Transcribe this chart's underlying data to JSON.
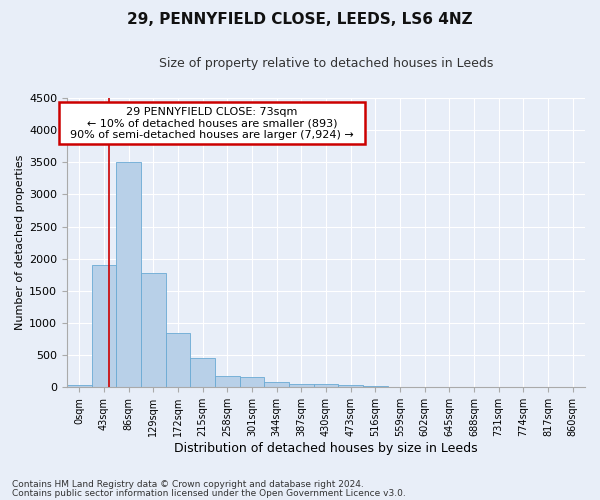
{
  "title": "29, PENNYFIELD CLOSE, LEEDS, LS6 4NZ",
  "subtitle": "Size of property relative to detached houses in Leeds",
  "xlabel": "Distribution of detached houses by size in Leeds",
  "ylabel": "Number of detached properties",
  "bin_labels": [
    "0sqm",
    "43sqm",
    "86sqm",
    "129sqm",
    "172sqm",
    "215sqm",
    "258sqm",
    "301sqm",
    "344sqm",
    "387sqm",
    "430sqm",
    "473sqm",
    "516sqm",
    "559sqm",
    "602sqm",
    "645sqm",
    "688sqm",
    "731sqm",
    "774sqm",
    "817sqm",
    "860sqm"
  ],
  "bar_values": [
    30,
    1900,
    3500,
    1780,
    840,
    450,
    175,
    160,
    90,
    55,
    45,
    35,
    20,
    10,
    5,
    3,
    2,
    2,
    1,
    1,
    0
  ],
  "bar_color": "#b8d0e8",
  "bar_edgecolor": "#6aaad4",
  "ylim": [
    0,
    4500
  ],
  "yticks": [
    0,
    500,
    1000,
    1500,
    2000,
    2500,
    3000,
    3500,
    4000,
    4500
  ],
  "annotation_text_line1": "29 PENNYFIELD CLOSE: 73sqm",
  "annotation_text_line2": "← 10% of detached houses are smaller (893)",
  "annotation_text_line3": "90% of semi-detached houses are larger (7,924) →",
  "footer_line1": "Contains HM Land Registry data © Crown copyright and database right 2024.",
  "footer_line2": "Contains public sector information licensed under the Open Government Licence v3.0.",
  "background_color": "#e8eef8",
  "grid_color": "#ffffff",
  "annotation_box_color": "#ffffff",
  "annotation_box_edge_color": "#cc0000",
  "red_line_color": "#cc0000",
  "title_fontsize": 11,
  "subtitle_fontsize": 9,
  "xlabel_fontsize": 9,
  "ylabel_fontsize": 8,
  "tick_fontsize": 8,
  "annotation_fontsize": 8,
  "footer_fontsize": 6.5
}
